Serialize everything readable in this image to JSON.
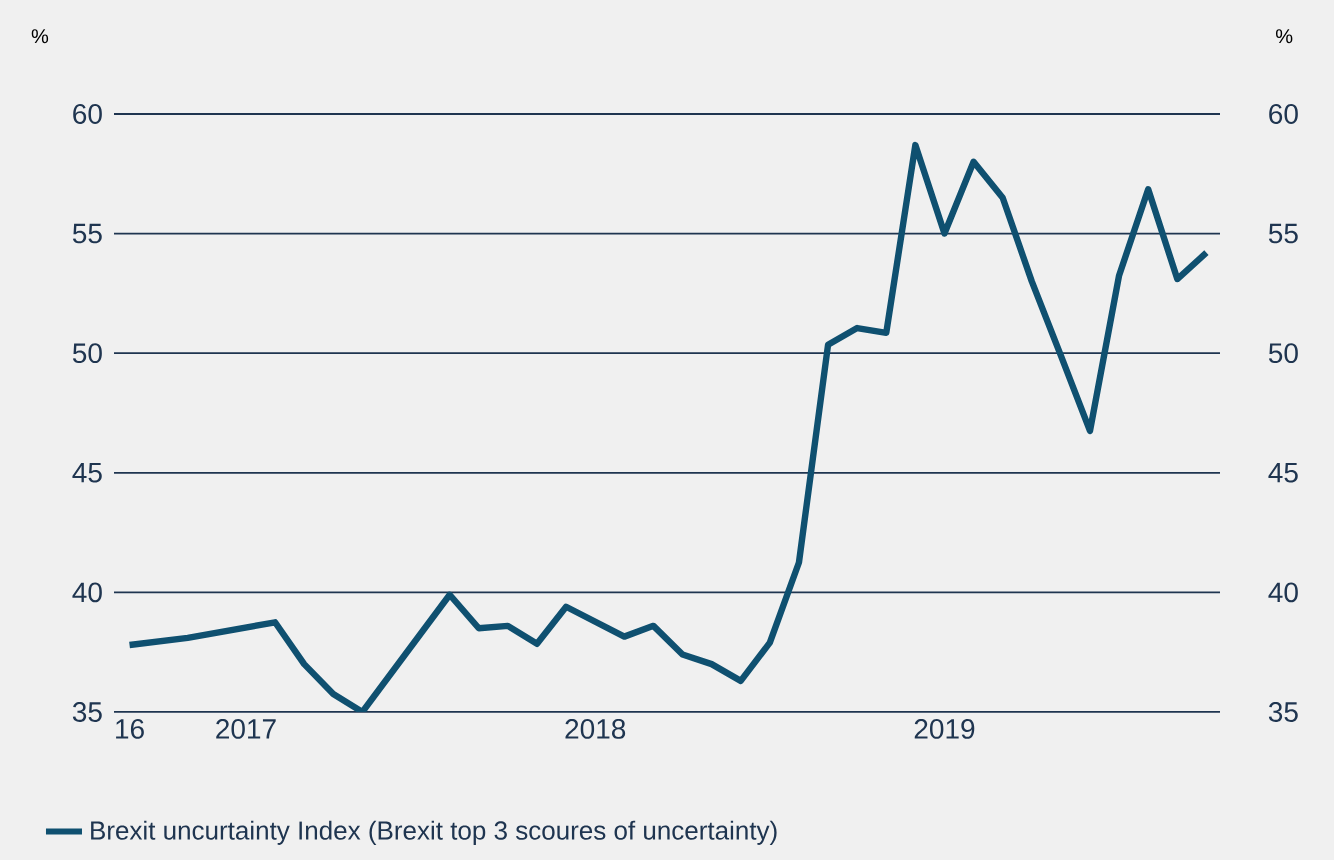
{
  "chart_data": {
    "type": "line",
    "ylabel": "%",
    "y2label": "%",
    "legend": "bottom left",
    "grid": "y",
    "line_style": "solid",
    "marker": "none",
    "x": [
      "2016-09",
      "2016-11",
      "2017-02",
      "2017-03",
      "2017-04",
      "2017-05",
      "2017-08",
      "2017-09",
      "2017-10",
      "2017-11",
      "2017-12",
      "2018-02",
      "2018-03",
      "2018-04",
      "2018-05",
      "2018-06",
      "2018-07",
      "2018-08",
      "2018-09",
      "2018-10",
      "2018-11",
      "2018-12",
      "2019-01",
      "2019-02",
      "2019-03",
      "2019-04",
      "2019-05",
      "2019-06",
      "2019-07",
      "2019-08",
      "2019-09",
      "2019-10"
    ],
    "series": [
      {
        "name": "Brexit uncurtainty Index (Brexit top 3 scoures of uncertainty)",
        "color": "#0f5070",
        "values": [
          37.8,
          38.1,
          38.75,
          37.0,
          35.75,
          35.0,
          39.9,
          38.5,
          38.6,
          37.85,
          39.4,
          38.15,
          38.6,
          37.4,
          37.0,
          36.3,
          37.9,
          41.25,
          50.35,
          51.05,
          50.85,
          58.7,
          55.0,
          58.0,
          56.5,
          53.0,
          49.9,
          46.75,
          53.25,
          56.85,
          53.1,
          54.2
        ]
      }
    ],
    "xlim": [
      "2016-08-15",
      "2019-10-15"
    ],
    "xticks": [
      {
        "value": "2016-09",
        "label": "16"
      },
      {
        "value": "2017-01",
        "label": "2017"
      },
      {
        "value": "2018-01",
        "label": "2018"
      },
      {
        "value": "2019-01",
        "label": "2019"
      }
    ],
    "ylim": [
      35,
      60
    ],
    "yticks": [
      35,
      40,
      45,
      50,
      55,
      60
    ],
    "y2lim": [
      35,
      60
    ],
    "y2ticks": [
      35,
      40,
      45,
      50,
      55,
      60
    ]
  }
}
